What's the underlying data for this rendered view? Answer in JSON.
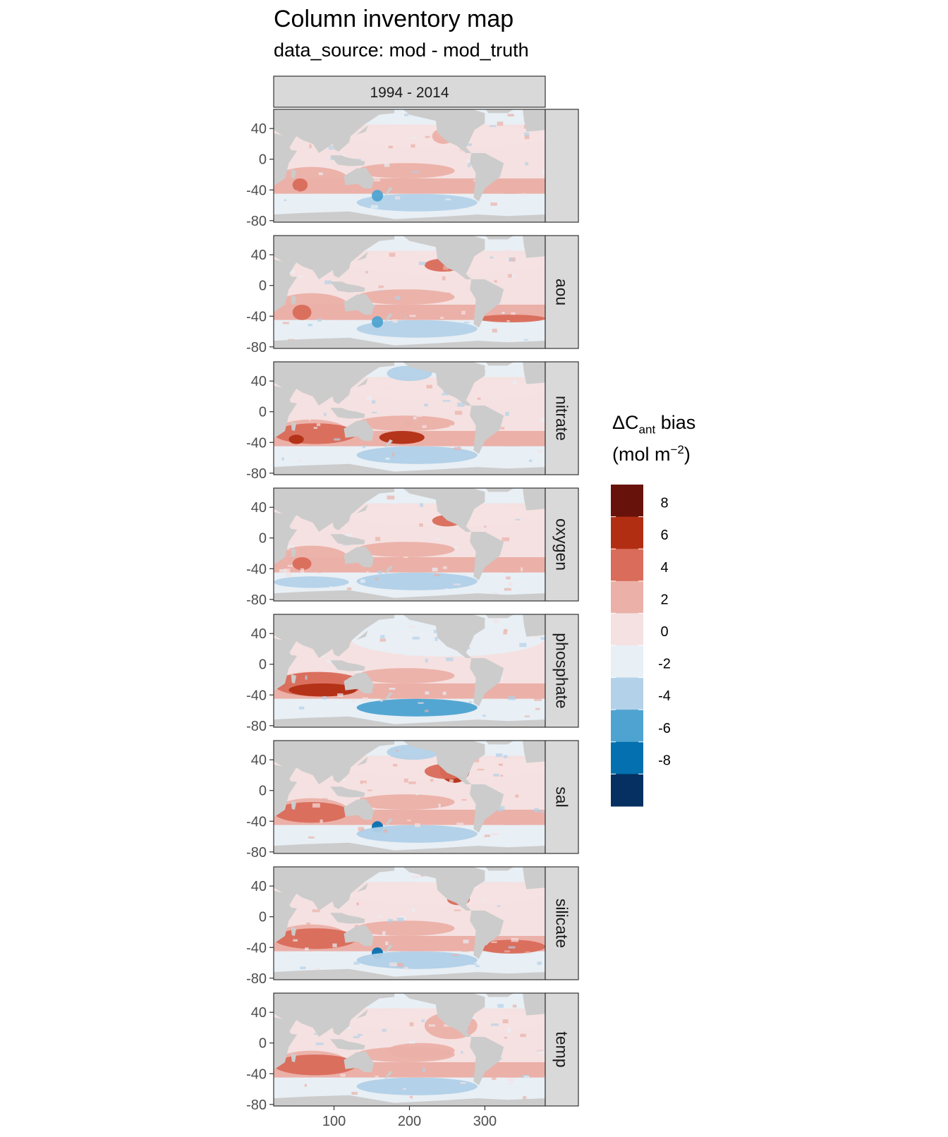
{
  "title": "Column inventory map",
  "subtitle": "data_source: mod - mod_truth",
  "legend": {
    "title_base": "ΔC",
    "title_sub": "ant",
    "title_after": " bias",
    "unit_before": "(mol m",
    "unit_sup": "−2",
    "unit_after": ")"
  },
  "colors": {
    "land": "#cccccc",
    "panel_strip": "#d9d9d9",
    "bins": [
      "#053061",
      "#0570b0",
      "#4fa3d1",
      "#b3d1e8",
      "#e8eff5",
      "#f5e1e1",
      "#ebb0a8",
      "#d96c5a",
      "#b22e13",
      "#67130b"
    ]
  },
  "chart_data": {
    "type": "heatmap",
    "title": "Column inventory map",
    "subtitle": "data_source: mod - mod_truth",
    "column_facets": [
      "1994 - 2014"
    ],
    "row_facets": [
      "",
      "aou",
      "nitrate",
      "oxygen",
      "phosphate",
      "sal",
      "silicate",
      "temp"
    ],
    "x_ticks": [
      100,
      200,
      300
    ],
    "y_ticks": [
      40,
      0,
      -40,
      -80
    ],
    "xlim": [
      20,
      380
    ],
    "ylim": [
      -82,
      65
    ],
    "legend_breaks": [
      8,
      6,
      4,
      2,
      0,
      -2,
      -4,
      -6,
      -8
    ],
    "legend_bins": [
      [
        8,
        10
      ],
      [
        6,
        8
      ],
      [
        4,
        6
      ],
      [
        2,
        4
      ],
      [
        0,
        2
      ],
      [
        -2,
        0
      ],
      [
        -4,
        -2
      ],
      [
        -6,
        -4
      ],
      [
        -8,
        -6
      ],
      [
        -10,
        -8
      ]
    ],
    "legend_position": "right",
    "grid": false
  }
}
